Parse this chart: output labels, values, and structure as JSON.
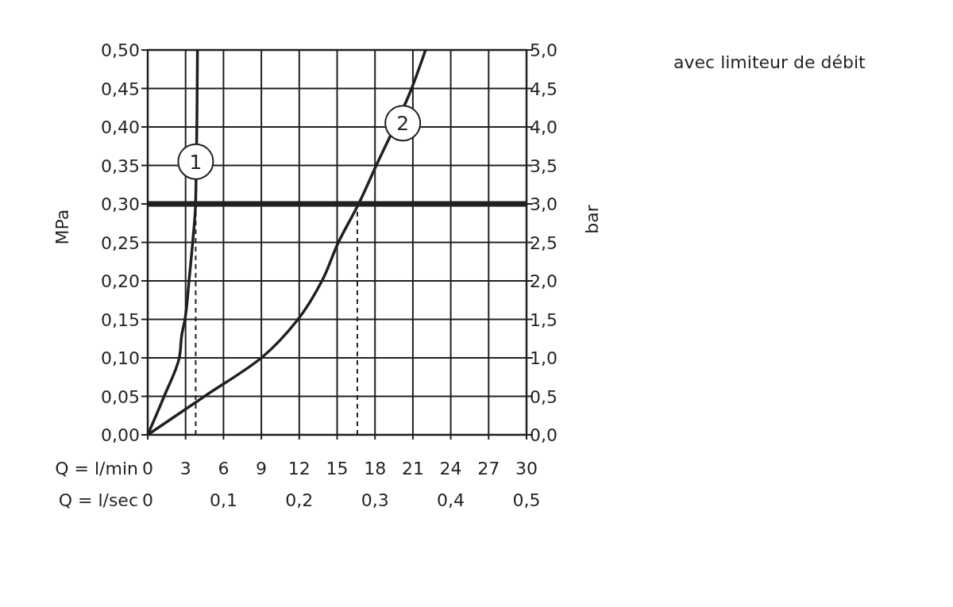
{
  "chart_data": {
    "type": "line",
    "xlabel": "Q = l/min",
    "x2label": "Q = l/sec",
    "ylabel": "MPa",
    "y2label": "bar",
    "xlim": [
      0,
      30
    ],
    "xticks": [
      0,
      3,
      6,
      9,
      12,
      15,
      18,
      21,
      24,
      27,
      30
    ],
    "x2lim": [
      0,
      0.5
    ],
    "x2ticks": [
      {
        "value": 0,
        "label": "0"
      },
      {
        "value": 0.1,
        "label": "0,1"
      },
      {
        "value": 0.2,
        "label": "0,2"
      },
      {
        "value": 0.3,
        "label": "0,3"
      },
      {
        "value": 0.4,
        "label": "0,4"
      },
      {
        "value": 0.5,
        "label": "0,5"
      }
    ],
    "ylim": [
      0,
      0.5
    ],
    "yticks": [
      {
        "value": 0,
        "label": "0,00"
      },
      {
        "value": 0.05,
        "label": "0,05"
      },
      {
        "value": 0.1,
        "label": "0,10"
      },
      {
        "value": 0.15,
        "label": "0,15"
      },
      {
        "value": 0.2,
        "label": "0,20"
      },
      {
        "value": 0.25,
        "label": "0,25"
      },
      {
        "value": 0.3,
        "label": "0,30"
      },
      {
        "value": 0.35,
        "label": "0,35"
      },
      {
        "value": 0.4,
        "label": "0,40"
      },
      {
        "value": 0.45,
        "label": "0,45"
      },
      {
        "value": 0.5,
        "label": "0,50"
      }
    ],
    "y2lim": [
      0,
      5
    ],
    "y2ticks": [
      {
        "value": 0,
        "label": "0,0"
      },
      {
        "value": 0.5,
        "label": "0,5"
      },
      {
        "value": 1,
        "label": "1,0"
      },
      {
        "value": 1.5,
        "label": "1,5"
      },
      {
        "value": 2,
        "label": "2,0"
      },
      {
        "value": 2.5,
        "label": "2,5"
      },
      {
        "value": 3,
        "label": "3,0"
      },
      {
        "value": 3.5,
        "label": "3,5"
      },
      {
        "value": 4,
        "label": "4,0"
      },
      {
        "value": 4.5,
        "label": "4,5"
      },
      {
        "value": 5,
        "label": "5,0"
      }
    ],
    "grid": true,
    "line_style": "solid",
    "marker": "none",
    "series": [
      {
        "color": "#231f20",
        "x": [
          0,
          1.3,
          2.5,
          2.7,
          2.95,
          3.27,
          3.56,
          3.79,
          3.94
        ],
        "values": [
          0,
          0.05,
          0.1,
          0.13,
          0.15,
          0.2,
          0.25,
          0.3,
          0.5
        ]
      },
      {
        "color": "#231f20",
        "x": [
          0,
          4.5,
          9,
          11.9,
          13.8,
          15.1,
          16.7,
          18.1,
          20.9,
          22
        ],
        "values": [
          0,
          0.05,
          0.1,
          0.15,
          0.2,
          0.25,
          0.3,
          0.35,
          0.45,
          0.5
        ]
      }
    ],
    "ref_lines": [
      {
        "axis": "y",
        "value": 0.3,
        "color": "#231f20",
        "line_style": "solid"
      },
      {
        "axis": "x",
        "value": 3.8,
        "color": "#231f20",
        "line_style": "dashed"
      },
      {
        "axis": "x",
        "value": 16.6,
        "color": "#231f20",
        "line_style": "dashed"
      }
    ],
    "annotations": [
      {
        "text": "1",
        "x": 3.8,
        "y": 0.355
      },
      {
        "text": "2",
        "x": 20.2,
        "y": 0.405
      },
      "avec limiteur de débit"
    ]
  }
}
